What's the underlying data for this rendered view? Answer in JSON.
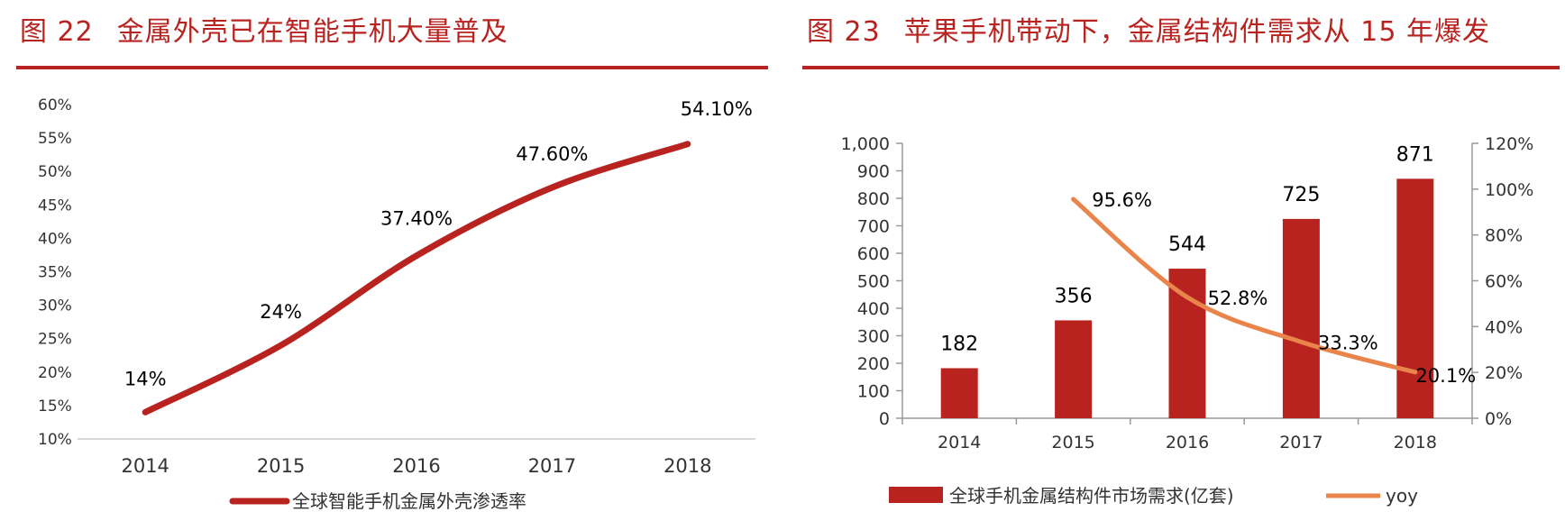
{
  "figures": [
    {
      "number": "图 22",
      "title": "金属外壳已在智能手机大量普及"
    },
    {
      "number": "图 23",
      "title": "苹果手机带动下，金属结构件需求从 15 年爆发"
    }
  ],
  "colors": {
    "accent": "#b8231f",
    "bar": "#b8231f",
    "yoy_line": "#e9844a",
    "axis": "#999999"
  },
  "chart_data": [
    {
      "type": "line",
      "x": [
        "2014",
        "2015",
        "2016",
        "2017",
        "2018"
      ],
      "series": [
        {
          "name": "全球智能手机金属外壳渗透率",
          "values": [
            14,
            24,
            37.4,
            47.6,
            54.1
          ],
          "labels": [
            "14%",
            "24%",
            "37.40%",
            "47.60%",
            "54.10%"
          ]
        }
      ],
      "ylim": [
        10,
        60
      ],
      "yticks": [
        "10%",
        "15%",
        "20%",
        "25%",
        "30%",
        "35%",
        "40%",
        "45%",
        "50%",
        "55%",
        "60%"
      ],
      "legend": "bottom",
      "grid": false
    },
    {
      "type": "bar",
      "categories": [
        "2014",
        "2015",
        "2016",
        "2017",
        "2018"
      ],
      "series": [
        {
          "name": "全球手机金属结构件市场需求(亿套)",
          "type": "bar",
          "axis": "left",
          "values": [
            182,
            356,
            544,
            725,
            871
          ],
          "labels": [
            "182",
            "356",
            "544",
            "725",
            "871"
          ]
        },
        {
          "name": "yoy",
          "type": "line",
          "axis": "right",
          "values": [
            null,
            95.6,
            52.8,
            33.3,
            20.1
          ],
          "labels": [
            "",
            "95.6%",
            "52.8%",
            "33.3%",
            "20.1%"
          ]
        }
      ],
      "ylim_left": [
        0,
        1000
      ],
      "yticks_left": [
        "0",
        "100",
        "200",
        "300",
        "400",
        "500",
        "600",
        "700",
        "800",
        "900",
        "1,000"
      ],
      "ylim_right": [
        0,
        120
      ],
      "yticks_right": [
        "0%",
        "20%",
        "40%",
        "60%",
        "80%",
        "100%",
        "120%"
      ],
      "legend": "bottom",
      "grid": false
    }
  ]
}
